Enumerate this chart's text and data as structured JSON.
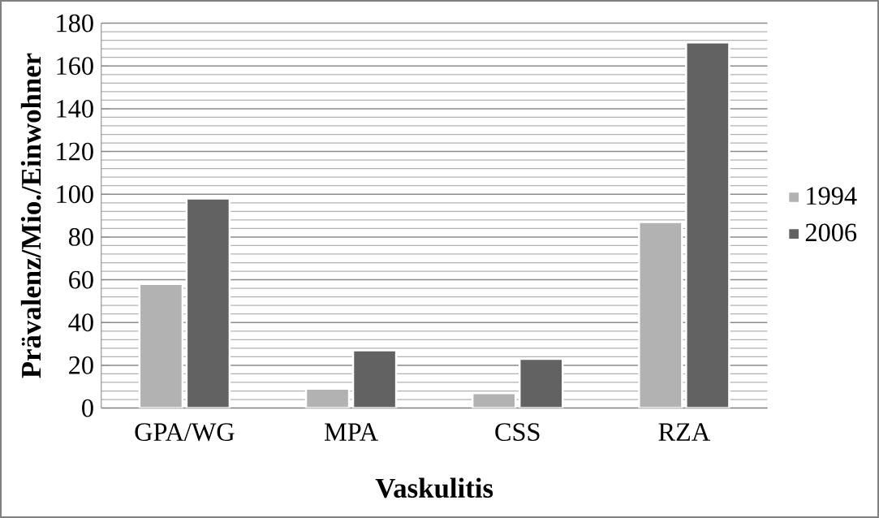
{
  "chart_data": {
    "type": "bar",
    "xlabel": "Vaskulitis",
    "ylabel": "Prävalenz/Mio./Einwohner",
    "categories": [
      "GPA/WG",
      "MPA",
      "CSS",
      "RZA"
    ],
    "series": [
      {
        "name": "1994",
        "color": "#b2b2b2",
        "values": [
          58,
          9,
          7,
          87
        ]
      },
      {
        "name": "2006",
        "color": "#626262",
        "values": [
          98,
          27,
          23,
          171
        ]
      }
    ],
    "ylim": [
      0,
      180
    ],
    "yticks": [
      0,
      20,
      40,
      60,
      80,
      100,
      120,
      140,
      160,
      180
    ],
    "grid": "y",
    "legend": "right"
  }
}
